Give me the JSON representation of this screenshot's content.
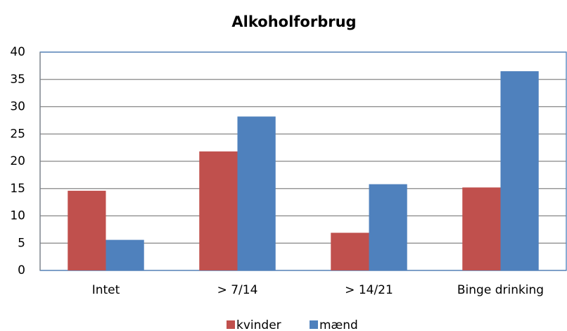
{
  "chart_data": {
    "type": "bar",
    "title": "Alkoholforbrug",
    "categories": [
      "Intet",
      "> 7/14",
      "> 14/21",
      "Binge drinking"
    ],
    "series": [
      {
        "name": "kvinder",
        "color": "#c0504d",
        "values": [
          14.6,
          21.8,
          6.9,
          15.2
        ]
      },
      {
        "name": "mænd",
        "color": "#4f81bd",
        "values": [
          5.6,
          28.2,
          15.8,
          36.5
        ]
      }
    ],
    "ylim": [
      0,
      40
    ],
    "yticks": [
      0,
      5,
      10,
      15,
      20,
      25,
      30,
      35,
      40
    ],
    "grid": true,
    "legend": "bottom"
  }
}
